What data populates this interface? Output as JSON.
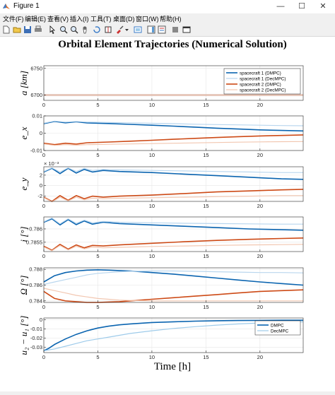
{
  "window": {
    "title": "Figure 1",
    "minimize": "—",
    "maximize": "☐",
    "close": "✕"
  },
  "menu": [
    "文件(F)",
    "编辑(E)",
    "查看(V)",
    "插入(I)",
    "工具(T)",
    "桌面(D)",
    "窗口(W)",
    "帮助(H)"
  ],
  "toolbar_icons": [
    "new-file-icon",
    "open-folder-icon",
    "save-icon",
    "print-icon",
    "pointer-icon",
    "zoom-in-icon",
    "zoom-out-icon",
    "pan-icon",
    "rotate-icon",
    "data-cursor-icon",
    "brush-icon",
    "dropdown-arrow-icon",
    "link-icon",
    "colorbar-icon",
    "legend-icon",
    "hide-tools-icon",
    "dock-icon"
  ],
  "colors": {
    "dmpc1": "#0a64b0",
    "decmpc1": "#b9d6ee",
    "dmpc2": "#cd4a16",
    "decmpc2": "#f2c7b1",
    "u_dmpc": "#0a64b0",
    "u_decmpc": "#9ecbea"
  },
  "chart_data": {
    "title": "Orbital Element Trajectories (Numerical Solution)",
    "xlabel": "Time [h]",
    "xlim": [
      0,
      24
    ],
    "xticks": [
      "0",
      "5",
      "10",
      "15",
      "20"
    ],
    "grid": true,
    "subplots": [
      {
        "type": "line",
        "ylabel": "a  [km]",
        "yticks": [
          "6750",
          "6700"
        ],
        "ylim": [
          6690,
          6755
        ],
        "legend": {
          "placement": "top-right",
          "entries": [
            "spacecraft 1 (DMPC)",
            "spacecraft 1 (DecMPC)",
            "spacecraft 2 (DMPC)",
            "spacecraft 2 (DecMPC)"
          ]
        },
        "series": [
          {
            "name": "spacecraft 1 (DMPC)",
            "x": [
              0,
              24
            ],
            "y": [
              6700,
              6700
            ]
          },
          {
            "name": "spacecraft 1 (DecMPC)",
            "x": [
              0,
              24
            ],
            "y": [
              6700,
              6700
            ]
          },
          {
            "name": "spacecraft 2 (DMPC)",
            "x": [
              0,
              24
            ],
            "y": [
              6700,
              6700
            ]
          },
          {
            "name": "spacecraft 2 (DecMPC)",
            "x": [
              0,
              24
            ],
            "y": [
              6700,
              6700
            ]
          }
        ]
      },
      {
        "type": "line",
        "ylabel": "e_x",
        "yticks": [
          "0.01",
          "0",
          "-0.01"
        ],
        "ylim": [
          -0.01,
          0.01
        ],
        "series": [
          {
            "name": "spacecraft 1 (DMPC)",
            "x": [
              0,
              1,
              2,
              3,
              4,
              6,
              8,
              10,
              12,
              14,
              16,
              18,
              20,
              22,
              24
            ],
            "y": [
              0.0055,
              0.0068,
              0.006,
              0.0066,
              0.0059,
              0.0056,
              0.0051,
              0.0046,
              0.0041,
              0.0035,
              0.0029,
              0.0024,
              0.0019,
              0.0016,
              0.0013
            ]
          },
          {
            "name": "spacecraft 1 (DecMPC)",
            "x": [
              0,
              1,
              2,
              3,
              4,
              6,
              8,
              10,
              12,
              14,
              16,
              18,
              20,
              22,
              24
            ],
            "y": [
              0.0058,
              0.007,
              0.0064,
              0.0068,
              0.0064,
              0.0062,
              0.006,
              0.0057,
              0.0055,
              0.0052,
              0.005,
              0.0048,
              0.0046,
              0.0044,
              0.0043
            ]
          },
          {
            "name": "spacecraft 2 (DMPC)",
            "x": [
              0,
              1,
              2,
              3,
              4,
              6,
              8,
              10,
              12,
              14,
              16,
              18,
              20,
              22,
              24
            ],
            "y": [
              -0.0058,
              -0.0066,
              -0.0058,
              -0.0063,
              -0.0055,
              -0.0051,
              -0.0046,
              -0.0041,
              -0.0035,
              -0.003,
              -0.0025,
              -0.002,
              -0.0016,
              -0.0013,
              -0.001
            ]
          },
          {
            "name": "spacecraft 2 (DecMPC)",
            "x": [
              0,
              1,
              2,
              3,
              4,
              6,
              8,
              10,
              12,
              14,
              16,
              18,
              20,
              22,
              24
            ],
            "y": [
              -0.0062,
              -0.007,
              -0.0066,
              -0.0069,
              -0.0066,
              -0.0064,
              -0.0062,
              -0.006,
              -0.0058,
              -0.0056,
              -0.0054,
              -0.0052,
              -0.005,
              -0.0049,
              -0.0048
            ]
          }
        ]
      },
      {
        "type": "line",
        "ylabel": "e_y",
        "yscale_label": "× 10⁻³",
        "yticks": [
          "2",
          "0",
          "-2"
        ],
        "ylim": [
          -3,
          3.6
        ],
        "series": [
          {
            "name": "spacecraft 1 (DMPC)",
            "x": [
              0,
              0.75,
              1.5,
              2.25,
              3,
              3.75,
              4.5,
              5.5,
              7,
              10,
              13,
              16,
              19,
              22,
              24
            ],
            "y": [
              2.6,
              3.3,
              2.3,
              3.3,
              2.4,
              3.1,
              2.6,
              2.9,
              2.7,
              2.5,
              2.2,
              1.9,
              1.6,
              1.3,
              1.2
            ]
          },
          {
            "name": "spacecraft 1 (DecMPC)",
            "x": [
              0,
              0.75,
              1.5,
              2.25,
              3,
              3.75,
              4.5,
              5.5,
              7,
              10,
              13,
              16,
              19,
              22,
              24
            ],
            "y": [
              2.7,
              3.4,
              2.6,
              3.4,
              2.7,
              3.3,
              2.9,
              3.1,
              3.0,
              2.9,
              2.8,
              2.7,
              2.6,
              2.5,
              2.5
            ]
          },
          {
            "name": "spacecraft 2 (DMPC)",
            "x": [
              0,
              0.75,
              1.5,
              2.25,
              3,
              3.75,
              4.5,
              5.5,
              7,
              10,
              13,
              16,
              19,
              22,
              24
            ],
            "y": [
              -2.2,
              -3.0,
              -1.9,
              -2.8,
              -1.9,
              -2.5,
              -2.0,
              -2.2,
              -2.0,
              -1.8,
              -1.5,
              -1.2,
              -1.0,
              -0.8,
              -0.7
            ]
          },
          {
            "name": "spacecraft 2 (DecMPC)",
            "x": [
              0,
              0.75,
              1.5,
              2.25,
              3,
              3.75,
              4.5,
              5.5,
              7,
              10,
              13,
              16,
              19,
              22,
              24
            ],
            "y": [
              -2.3,
              -3.1,
              -2.2,
              -2.9,
              -2.2,
              -2.7,
              -2.4,
              -2.5,
              -2.4,
              -2.3,
              -2.2,
              -2.1,
              -2.0,
              -1.9,
              -1.9
            ]
          }
        ]
      },
      {
        "type": "line",
        "ylabel": "i  [°]",
        "yticks": [
          "0.786",
          "0.7855"
        ],
        "ylim": [
          0.78515,
          0.78645
        ],
        "series": [
          {
            "name": "spacecraft 1 (DMPC)",
            "x": [
              0,
              0.75,
              1.5,
              2.25,
              3,
              3.75,
              4.5,
              5.5,
              7,
              10,
              13,
              16,
              19,
              22,
              24
            ],
            "y": [
              0.78625,
              0.78638,
              0.78615,
              0.78635,
              0.78616,
              0.7863,
              0.78618,
              0.78625,
              0.7862,
              0.78615,
              0.7861,
              0.78605,
              0.786,
              0.78597,
              0.78595
            ]
          },
          {
            "name": "spacecraft 1 (DecMPC)",
            "x": [
              0,
              0.75,
              1.5,
              2.25,
              3,
              3.75,
              4.5,
              5.5,
              7,
              10,
              13,
              16,
              19,
              22,
              24
            ],
            "y": [
              0.78627,
              0.78641,
              0.78619,
              0.78638,
              0.78621,
              0.78633,
              0.78623,
              0.78628,
              0.78625,
              0.78623,
              0.78621,
              0.7862,
              0.78619,
              0.78618,
              0.78618
            ]
          },
          {
            "name": "spacecraft 2 (DMPC)",
            "x": [
              0,
              0.75,
              1.5,
              2.25,
              3,
              3.75,
              4.5,
              5.5,
              7,
              10,
              13,
              16,
              19,
              22,
              24
            ],
            "y": [
              0.78535,
              0.7852,
              0.78542,
              0.78524,
              0.7854,
              0.78529,
              0.78538,
              0.78536,
              0.7854,
              0.78546,
              0.78552,
              0.78557,
              0.78561,
              0.78564,
              0.78566
            ]
          },
          {
            "name": "spacecraft 2 (DecMPC)",
            "x": [
              0,
              0.75,
              1.5,
              2.25,
              3,
              3.75,
              4.5,
              5.5,
              7,
              10,
              13,
              16,
              19,
              22,
              24
            ],
            "y": [
              0.78532,
              0.78518,
              0.78538,
              0.78521,
              0.78535,
              0.78525,
              0.78532,
              0.78529,
              0.78531,
              0.78534,
              0.78536,
              0.78538,
              0.7854,
              0.78541,
              0.78542
            ]
          }
        ]
      },
      {
        "type": "line",
        "ylabel": "Ω  [°]",
        "yticks": [
          "0.788",
          "0.786",
          "0.784"
        ],
        "ylim": [
          0.7838,
          0.7882
        ],
        "series": [
          {
            "name": "spacecraft 1 (DMPC)",
            "x": [
              0,
              1,
              2,
              3,
              4,
              5,
              6,
              7,
              8,
              10,
              12,
              14,
              16,
              18,
              20,
              22,
              24
            ],
            "y": [
              0.7864,
              0.7872,
              0.7876,
              0.7878,
              0.7879,
              0.78795,
              0.7879,
              0.78785,
              0.7878,
              0.7876,
              0.7874,
              0.78715,
              0.7869,
              0.78665,
              0.7864,
              0.7862,
              0.786
            ]
          },
          {
            "name": "spacecraft 1 (DecMPC)",
            "x": [
              0,
              1,
              2,
              3,
              4,
              5,
              6,
              7,
              8,
              10,
              12,
              14,
              16,
              18,
              20,
              22,
              24
            ],
            "y": [
              0.7861,
              0.7864,
              0.7867,
              0.787,
              0.7873,
              0.7875,
              0.7876,
              0.7877,
              0.78775,
              0.7878,
              0.7878,
              0.78775,
              0.7877,
              0.78765,
              0.7876,
              0.7876,
              0.78755
            ]
          },
          {
            "name": "spacecraft 2 (DMPC)",
            "x": [
              0,
              1,
              2,
              3,
              4,
              5,
              6,
              7,
              8,
              10,
              12,
              14,
              16,
              18,
              20,
              22,
              24
            ],
            "y": [
              0.7852,
              0.7843,
              0.784,
              0.7839,
              0.7838,
              0.7838,
              0.78385,
              0.7839,
              0.784,
              0.7842,
              0.7844,
              0.7846,
              0.7848,
              0.785,
              0.7852,
              0.7853,
              0.7854
            ]
          },
          {
            "name": "spacecraft 2 (DecMPC)",
            "x": [
              0,
              1,
              2,
              3,
              4,
              5,
              6,
              7,
              8,
              10,
              12,
              14,
              16,
              18,
              20,
              22,
              24
            ],
            "y": [
              0.7856,
              0.7853,
              0.785,
              0.7847,
              0.7845,
              0.7843,
              0.7842,
              0.7841,
              0.78405,
              0.784,
              0.784,
              0.784,
              0.784,
              0.784,
              0.784,
              0.784,
              0.784
            ]
          }
        ]
      },
      {
        "type": "line",
        "ylabel": "u₂ − u₁  [°]",
        "yticks": [
          "0",
          "-0.01",
          "-0.02",
          "-0.03"
        ],
        "ylim": [
          -0.036,
          0.002
        ],
        "legend": {
          "placement": "top-right",
          "entries": [
            "DMPC",
            "DecMPC"
          ]
        },
        "series": [
          {
            "name": "DMPC",
            "x": [
              0,
              0.5,
              1,
              2,
              3,
              4,
              5,
              6,
              7,
              8,
              10,
              12,
              14,
              16,
              18,
              20,
              22,
              24
            ],
            "y": [
              -0.034,
              -0.031,
              -0.027,
              -0.021,
              -0.016,
              -0.012,
              -0.009,
              -0.007,
              -0.0055,
              -0.0045,
              -0.003,
              -0.0022,
              -0.0015,
              -0.001,
              -0.0008,
              -0.0006,
              -0.0005,
              -0.0005
            ]
          },
          {
            "name": "DecMPC",
            "x": [
              0,
              1,
              2,
              3,
              4,
              5,
              6,
              7,
              8,
              10,
              12,
              14,
              16,
              18,
              20,
              22,
              24
            ],
            "y": [
              -0.034,
              -0.032,
              -0.029,
              -0.026,
              -0.023,
              -0.021,
              -0.019,
              -0.017,
              -0.015,
              -0.012,
              -0.0095,
              -0.0075,
              -0.0058,
              -0.0045,
              -0.0035,
              -0.0027,
              -0.0022
            ]
          }
        ]
      }
    ]
  }
}
